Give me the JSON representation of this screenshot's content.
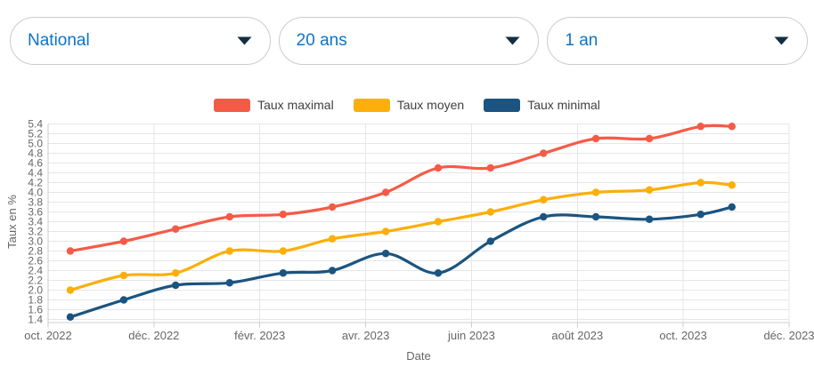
{
  "filters": {
    "region": {
      "value": "National"
    },
    "loan_duration": {
      "value": "20 ans"
    },
    "time_range": {
      "value": "1 an"
    }
  },
  "colors": {
    "dropdown_text": "#0d74c7",
    "chevron": "#112e44",
    "border": "#cccccc",
    "legend_text": "#404040",
    "axis_text": "#666666",
    "gridline": "#e6e6e6",
    "axis_line": "#cccccc"
  },
  "chart_data": {
    "type": "line",
    "title": "",
    "xlabel": "Date",
    "ylabel": "Taux en %",
    "legend_position": "top",
    "grid": true,
    "x": [
      "oct. 2022",
      "nov. 2022",
      "déc. 2022",
      "janv. 2023",
      "févr. 2023",
      "mars 2023",
      "avr. 2023",
      "mai 2023",
      "juin 2023",
      "juil. 2023",
      "août 2023",
      "sept. 2023",
      "oct. 2023",
      "nov. 2023"
    ],
    "x_months": [
      0.42,
      1.43,
      2.41,
      3.43,
      4.44,
      5.37,
      6.38,
      7.37,
      8.36,
      9.36,
      10.35,
      11.36,
      12.33,
      12.92
    ],
    "series": [
      {
        "name": "Taux maximal",
        "color": "#f45b47",
        "values": [
          2.8,
          3.0,
          3.25,
          3.5,
          3.55,
          3.7,
          4.0,
          4.5,
          4.5,
          4.8,
          5.1,
          5.1,
          5.35,
          5.35
        ]
      },
      {
        "name": "Taux moyen",
        "color": "#fbaf08",
        "values": [
          2.0,
          2.3,
          2.35,
          2.8,
          2.8,
          3.05,
          3.2,
          3.4,
          3.6,
          3.85,
          4.0,
          4.05,
          4.2,
          4.15
        ]
      },
      {
        "name": "Taux minimal",
        "color": "#1b5480",
        "values": [
          1.45,
          1.8,
          2.1,
          2.15,
          2.35,
          2.4,
          2.75,
          2.35,
          3.0,
          3.5,
          3.5,
          3.45,
          3.55,
          3.7
        ]
      }
    ],
    "y_axis": {
      "min": 1.4,
      "max": 5.4,
      "tick_step": 0.2
    },
    "x_axis": {
      "span_months": 14,
      "tick_step_months": 2,
      "tick_labels": [
        "oct. 2022",
        "déc. 2022",
        "févr. 2023",
        "avr. 2023",
        "juin 2023",
        "août 2023",
        "oct. 2023",
        "déc. 2023"
      ]
    }
  }
}
